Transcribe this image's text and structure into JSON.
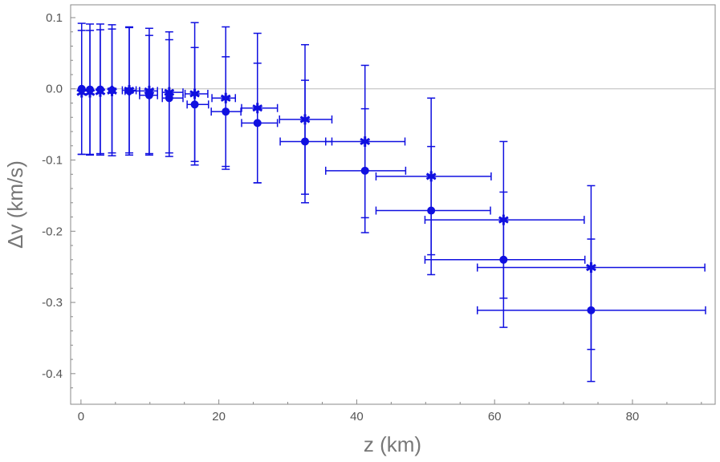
{
  "chart_data": {
    "type": "scatter",
    "xlabel": "z (km)",
    "ylabel": "Δv (km/s)",
    "xlim": [
      -1.5,
      92
    ],
    "ylim": [
      -0.443,
      0.118
    ],
    "grid": false,
    "zero_line": true,
    "x_ticks": [
      0,
      20,
      40,
      60,
      80
    ],
    "x_tick_labels": [
      "0",
      "20",
      "40",
      "60",
      "80"
    ],
    "y_ticks": [
      0.1,
      0.0,
      -0.1,
      -0.2,
      -0.3,
      -0.4
    ],
    "y_tick_labels": [
      "0.1",
      "0.0",
      "-0.1",
      "-0.2",
      "-0.3",
      "-0.4"
    ],
    "colors": {
      "series": "#1010e0",
      "frame": "#888888",
      "zero_line": "#bbbbbb"
    },
    "series": [
      {
        "marker": "circle",
        "points": [
          {
            "x": 0.1,
            "y": 0.0,
            "yerr": 0.092,
            "xlo": 0.1,
            "xhi": 0.1
          },
          {
            "x": 1.3,
            "y": -0.001,
            "yerr": 0.092,
            "xlo": 1.3,
            "xhi": 1.3
          },
          {
            "x": 2.8,
            "y": -0.001,
            "yerr": 0.092,
            "xlo": 2.8,
            "xhi": 2.8
          },
          {
            "x": 4.5,
            "y": -0.002,
            "yerr": 0.092,
            "xlo": 4.5,
            "xhi": 4.5
          },
          {
            "x": 7.0,
            "y": -0.003,
            "yerr": 0.09,
            "xlo": 6.4,
            "xhi": 8.5
          },
          {
            "x": 9.9,
            "y": -0.009,
            "yerr": 0.084,
            "xlo": 8.5,
            "xhi": 11.1
          },
          {
            "x": 12.8,
            "y": -0.013,
            "yerr": 0.082,
            "xlo": 11.8,
            "xhi": 14.8
          },
          {
            "x": 16.5,
            "y": -0.022,
            "yerr": 0.08,
            "xlo": 15.4,
            "xhi": 18.5
          },
          {
            "x": 21.0,
            "y": -0.032,
            "yerr": 0.077,
            "xlo": 18.9,
            "xhi": 23.2
          },
          {
            "x": 25.6,
            "y": -0.048,
            "yerr": 0.084,
            "xlo": 23.3,
            "xhi": 28.5
          },
          {
            "x": 32.5,
            "y": -0.074,
            "yerr": 0.086,
            "xlo": 28.9,
            "xhi": 36.4
          },
          {
            "x": 41.2,
            "y": -0.115,
            "yerr": 0.087,
            "xlo": 35.5,
            "xhi": 47.1
          },
          {
            "x": 50.8,
            "y": -0.171,
            "yerr": 0.09,
            "xlo": 42.8,
            "xhi": 59.4
          },
          {
            "x": 61.3,
            "y": -0.24,
            "yerr": 0.095,
            "xlo": 49.9,
            "xhi": 73.1
          },
          {
            "x": 74.0,
            "y": -0.311,
            "yerr": 0.1,
            "xlo": 57.5,
            "xhi": 90.6
          }
        ]
      },
      {
        "marker": "star",
        "points": [
          {
            "x": 0.1,
            "y": -0.005,
            "yerr": 0.087,
            "xlo": 0.1,
            "xhi": 0.1
          },
          {
            "x": 1.3,
            "y": -0.005,
            "yerr": 0.087,
            "xlo": 1.3,
            "xhi": 1.3
          },
          {
            "x": 2.8,
            "y": -0.004,
            "yerr": 0.087,
            "xlo": 2.8,
            "xhi": 2.8
          },
          {
            "x": 4.5,
            "y": -0.003,
            "yerr": 0.087,
            "xlo": 4.5,
            "xhi": 4.5
          },
          {
            "x": 7.0,
            "y": -0.002,
            "yerr": 0.088,
            "xlo": 6.0,
            "xhi": 8.0
          },
          {
            "x": 9.9,
            "y": -0.003,
            "yerr": 0.088,
            "xlo": 8.5,
            "xhi": 11.1
          },
          {
            "x": 12.8,
            "y": -0.005,
            "yerr": 0.085,
            "xlo": 11.8,
            "xhi": 14.8
          },
          {
            "x": 16.5,
            "y": -0.007,
            "yerr": 0.1,
            "xlo": 15.1,
            "xhi": 18.4
          },
          {
            "x": 21.0,
            "y": -0.013,
            "yerr": 0.1,
            "xlo": 19.0,
            "xhi": 22.4
          },
          {
            "x": 25.6,
            "y": -0.027,
            "yerr": 0.105,
            "xlo": 23.3,
            "xhi": 28.5
          },
          {
            "x": 32.5,
            "y": -0.043,
            "yerr": 0.105,
            "xlo": 28.8,
            "xhi": 36.4
          },
          {
            "x": 41.2,
            "y": -0.074,
            "yerr": 0.107,
            "xlo": 35.5,
            "xhi": 47.0
          },
          {
            "x": 50.8,
            "y": -0.123,
            "yerr": 0.11,
            "xlo": 42.8,
            "xhi": 59.5
          },
          {
            "x": 61.3,
            "y": -0.184,
            "yerr": 0.11,
            "xlo": 49.9,
            "xhi": 73.0
          },
          {
            "x": 74.0,
            "y": -0.251,
            "yerr": 0.115,
            "xlo": 57.5,
            "xhi": 90.5
          }
        ]
      }
    ]
  }
}
